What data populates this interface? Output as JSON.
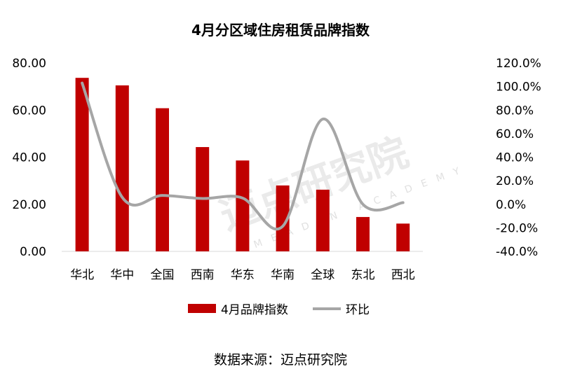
{
  "chart_data": {
    "type": "bar",
    "title": "4月分区域住房租赁品牌指数",
    "categories": [
      "华北",
      "华中",
      "全国",
      "西南",
      "华东",
      "华南",
      "全球",
      "东北",
      "西北"
    ],
    "series": [
      {
        "name": "4月品牌指数",
        "type": "bar",
        "axis": "left",
        "color": "#C00000",
        "values": [
          73.7,
          70.5,
          60.8,
          44.3,
          38.6,
          28.0,
          26.2,
          14.6,
          11.8
        ]
      },
      {
        "name": "环比",
        "type": "line",
        "axis": "right",
        "color": "#A6A6A6",
        "smooth": true,
        "values": [
          103.0,
          5.9,
          7.5,
          4.9,
          5.3,
          -18.7,
          72.4,
          0.0,
          1.4
        ]
      }
    ],
    "left_axis": {
      "ylim": [
        0,
        80
      ],
      "ticks": [
        "0.00",
        "20.00",
        "40.00",
        "60.00",
        "80.00"
      ]
    },
    "right_axis": {
      "ylim": [
        -40,
        120
      ],
      "ticks": [
        "-40.0%",
        "-20.0%",
        "0.0%",
        "20.0%",
        "40.0%",
        "60.0%",
        "80.0%",
        "100.0%",
        "120.0%"
      ]
    },
    "grid": false,
    "legend_position": "bottom",
    "source": "数据来源：迈点研究院",
    "watermark": {
      "text": "迈点研究院",
      "subtext": "MEADIN ACADEMY"
    }
  }
}
